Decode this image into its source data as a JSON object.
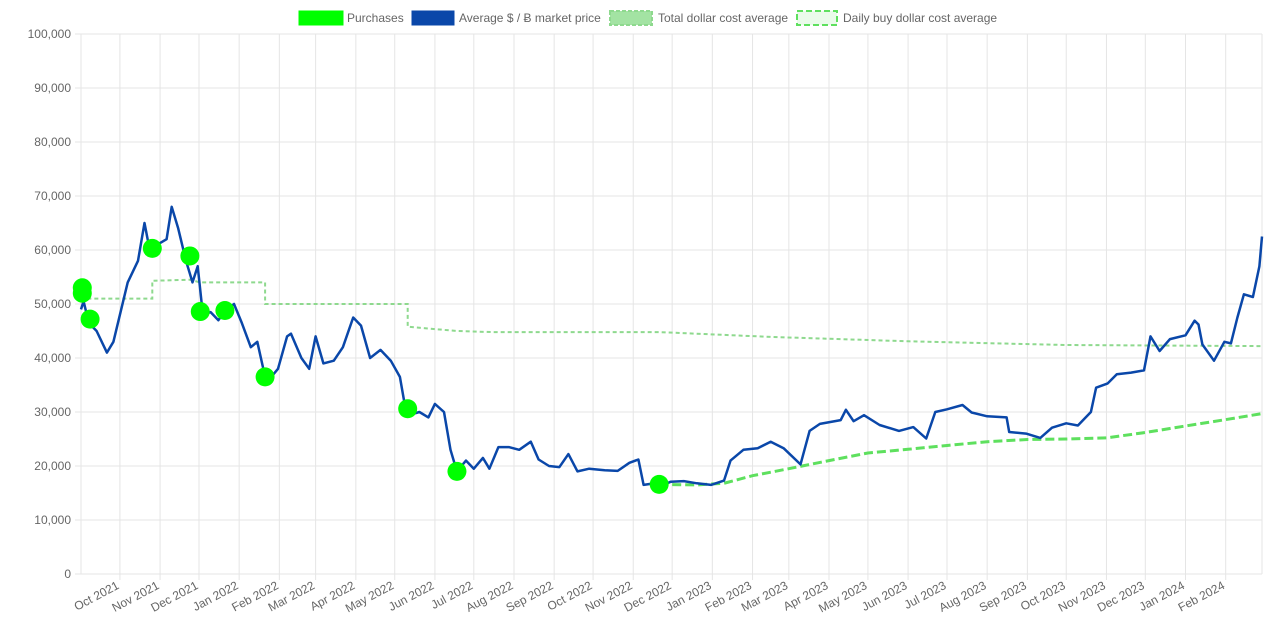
{
  "chart_data": {
    "type": "line",
    "title": "",
    "xlabel": "",
    "ylabel": "",
    "ylim": [
      0,
      100000
    ],
    "grid": true,
    "legend_position": "top",
    "y_ticks": [
      "0",
      "10,000",
      "20,000",
      "30,000",
      "40,000",
      "50,000",
      "60,000",
      "70,000",
      "80,000",
      "90,000",
      "100,000"
    ],
    "x_ticks": [
      "Oct 2021",
      "Nov 2021",
      "Dec 2021",
      "Jan 2022",
      "Feb 2022",
      "Mar 2022",
      "Apr 2022",
      "May 2022",
      "Jun 2022",
      "Jul 2022",
      "Aug 2022",
      "Sep 2022",
      "Oct 2022",
      "Nov 2022",
      "Dec 2022",
      "Jan 2023",
      "Feb 2023",
      "Mar 2023",
      "Apr 2023",
      "May 2023",
      "Jun 2023",
      "Jul 2023",
      "Aug 2023",
      "Sep 2023",
      "Oct 2023",
      "Nov 2023",
      "Dec 2023",
      "Jan 2024",
      "Feb 2024"
    ],
    "series": [
      {
        "name": "Purchases",
        "kind": "points",
        "color": "#00ff00",
        "points": [
          [
            "2021-09-02",
            52000
          ],
          [
            "2021-09-02",
            53000
          ],
          [
            "2021-09-08",
            47200
          ],
          [
            "2021-10-26",
            60300
          ],
          [
            "2021-11-24",
            58900
          ],
          [
            "2021-12-02",
            48600
          ],
          [
            "2021-12-21",
            48800
          ],
          [
            "2022-01-21",
            36500
          ],
          [
            "2022-05-11",
            30600
          ],
          [
            "2022-06-18",
            19000
          ],
          [
            "2022-11-21",
            16600
          ]
        ]
      },
      {
        "name": "Average $ / Ƀ market price",
        "kind": "line",
        "color": "#0a47a9",
        "points": [
          [
            "2021-09-01",
            49000
          ],
          [
            "2021-09-03",
            50500
          ],
          [
            "2021-09-07",
            46500
          ],
          [
            "2021-09-13",
            45000
          ],
          [
            "2021-09-21",
            41000
          ],
          [
            "2021-09-26",
            43000
          ],
          [
            "2021-10-01",
            48000
          ],
          [
            "2021-10-07",
            54000
          ],
          [
            "2021-10-15",
            58000
          ],
          [
            "2021-10-20",
            65000
          ],
          [
            "2021-10-24",
            60000
          ],
          [
            "2021-10-30",
            61000
          ],
          [
            "2021-11-06",
            62000
          ],
          [
            "2021-11-10",
            68000
          ],
          [
            "2021-11-15",
            64000
          ],
          [
            "2021-11-21",
            58000
          ],
          [
            "2021-11-26",
            54000
          ],
          [
            "2021-11-30",
            57000
          ],
          [
            "2021-12-04",
            48000
          ],
          [
            "2021-12-10",
            48500
          ],
          [
            "2021-12-16",
            47000
          ],
          [
            "2021-12-22",
            49000
          ],
          [
            "2021-12-28",
            50000
          ],
          [
            "2022-01-03",
            46500
          ],
          [
            "2022-01-10",
            42000
          ],
          [
            "2022-01-15",
            43000
          ],
          [
            "2022-01-21",
            36500
          ],
          [
            "2022-01-24",
            36000
          ],
          [
            "2022-01-31",
            38000
          ],
          [
            "2022-02-07",
            44000
          ],
          [
            "2022-02-10",
            44500
          ],
          [
            "2022-02-18",
            40000
          ],
          [
            "2022-02-24",
            38000
          ],
          [
            "2022-03-01",
            44000
          ],
          [
            "2022-03-07",
            39000
          ],
          [
            "2022-03-15",
            39500
          ],
          [
            "2022-03-22",
            42000
          ],
          [
            "2022-03-30",
            47500
          ],
          [
            "2022-04-05",
            46000
          ],
          [
            "2022-04-12",
            40000
          ],
          [
            "2022-04-20",
            41500
          ],
          [
            "2022-04-28",
            39500
          ],
          [
            "2022-05-05",
            36500
          ],
          [
            "2022-05-09",
            31000
          ],
          [
            "2022-05-13",
            29500
          ],
          [
            "2022-05-20",
            30000
          ],
          [
            "2022-05-27",
            29000
          ],
          [
            "2022-06-01",
            31500
          ],
          [
            "2022-06-08",
            30000
          ],
          [
            "2022-06-13",
            23000
          ],
          [
            "2022-06-18",
            19000
          ],
          [
            "2022-06-25",
            21000
          ],
          [
            "2022-07-01",
            19500
          ],
          [
            "2022-07-08",
            21500
          ],
          [
            "2022-07-13",
            19500
          ],
          [
            "2022-07-20",
            23500
          ],
          [
            "2022-07-28",
            23500
          ],
          [
            "2022-08-05",
            23000
          ],
          [
            "2022-08-14",
            24500
          ],
          [
            "2022-08-20",
            21200
          ],
          [
            "2022-08-28",
            20000
          ],
          [
            "2022-09-05",
            19800
          ],
          [
            "2022-09-12",
            22200
          ],
          [
            "2022-09-19",
            19000
          ],
          [
            "2022-09-28",
            19500
          ],
          [
            "2022-10-10",
            19200
          ],
          [
            "2022-10-20",
            19100
          ],
          [
            "2022-10-29",
            20600
          ],
          [
            "2022-11-05",
            21200
          ],
          [
            "2022-11-09",
            16500
          ],
          [
            "2022-11-15",
            16700
          ],
          [
            "2022-11-21",
            16200
          ],
          [
            "2022-11-30",
            17100
          ],
          [
            "2022-12-10",
            17200
          ],
          [
            "2022-12-20",
            16800
          ],
          [
            "2022-12-31",
            16500
          ],
          [
            "2023-01-10",
            17300
          ],
          [
            "2023-01-15",
            21000
          ],
          [
            "2023-01-25",
            23000
          ],
          [
            "2023-02-05",
            23300
          ],
          [
            "2023-02-15",
            24500
          ],
          [
            "2023-02-25",
            23300
          ],
          [
            "2023-03-10",
            20300
          ],
          [
            "2023-03-17",
            26500
          ],
          [
            "2023-03-25",
            27800
          ],
          [
            "2023-04-10",
            28500
          ],
          [
            "2023-04-14",
            30400
          ],
          [
            "2023-04-20",
            28300
          ],
          [
            "2023-04-28",
            29400
          ],
          [
            "2023-05-10",
            27600
          ],
          [
            "2023-05-25",
            26500
          ],
          [
            "2023-06-05",
            27200
          ],
          [
            "2023-06-15",
            25100
          ],
          [
            "2023-06-22",
            30000
          ],
          [
            "2023-07-01",
            30500
          ],
          [
            "2023-07-13",
            31300
          ],
          [
            "2023-07-20",
            29900
          ],
          [
            "2023-08-01",
            29200
          ],
          [
            "2023-08-16",
            29000
          ],
          [
            "2023-08-18",
            26300
          ],
          [
            "2023-08-31",
            26000
          ],
          [
            "2023-09-11",
            25200
          ],
          [
            "2023-09-20",
            27100
          ],
          [
            "2023-10-01",
            27900
          ],
          [
            "2023-10-10",
            27500
          ],
          [
            "2023-10-20",
            30000
          ],
          [
            "2023-10-24",
            34500
          ],
          [
            "2023-11-02",
            35300
          ],
          [
            "2023-11-09",
            37000
          ],
          [
            "2023-11-20",
            37300
          ],
          [
            "2023-11-30",
            37700
          ],
          [
            "2023-12-05",
            44000
          ],
          [
            "2023-12-12",
            41300
          ],
          [
            "2023-12-20",
            43500
          ],
          [
            "2024-01-01",
            44200
          ],
          [
            "2024-01-08",
            46900
          ],
          [
            "2024-01-11",
            46200
          ],
          [
            "2024-01-14",
            42500
          ],
          [
            "2024-01-23",
            39500
          ],
          [
            "2024-01-31",
            43000
          ],
          [
            "2024-02-05",
            42700
          ],
          [
            "2024-02-10",
            47500
          ],
          [
            "2024-02-15",
            51800
          ],
          [
            "2024-02-22",
            51300
          ],
          [
            "2024-02-27",
            57000
          ],
          [
            "2024-02-29",
            62500
          ]
        ]
      },
      {
        "name": "Total dollar cost average",
        "kind": "line",
        "color": "#8ed98e",
        "points": [
          [
            "2021-09-01",
            51500
          ],
          [
            "2021-09-05",
            51000
          ],
          [
            "2021-10-26",
            51000
          ],
          [
            "2021-10-26",
            54300
          ],
          [
            "2021-11-24",
            54500
          ],
          [
            "2021-12-02",
            54000
          ],
          [
            "2022-01-21",
            54000
          ],
          [
            "2022-01-21",
            50000
          ],
          [
            "2022-05-11",
            50000
          ],
          [
            "2022-05-11",
            45800
          ],
          [
            "2022-06-18",
            45000
          ],
          [
            "2022-07-15",
            44800
          ],
          [
            "2022-11-21",
            44800
          ],
          [
            "2023-02-15",
            43900
          ],
          [
            "2023-06-01",
            43100
          ],
          [
            "2023-10-01",
            42400
          ],
          [
            "2024-02-29",
            42200
          ]
        ]
      },
      {
        "name": "Daily buy dollar cost average",
        "kind": "line",
        "color": "#5ee05e",
        "points": [
          [
            "2022-11-21",
            16600
          ],
          [
            "2022-12-20",
            16500
          ],
          [
            "2023-01-10",
            16800
          ],
          [
            "2023-02-01",
            18200
          ],
          [
            "2023-03-01",
            19500
          ],
          [
            "2023-04-01",
            21000
          ],
          [
            "2023-05-01",
            22400
          ],
          [
            "2023-06-01",
            23100
          ],
          [
            "2023-07-01",
            23800
          ],
          [
            "2023-08-01",
            24500
          ],
          [
            "2023-09-01",
            24900
          ],
          [
            "2023-10-01",
            25000
          ],
          [
            "2023-11-01",
            25200
          ],
          [
            "2023-12-01",
            26200
          ],
          [
            "2024-01-01",
            27400
          ],
          [
            "2024-02-01",
            28600
          ],
          [
            "2024-02-29",
            29700
          ]
        ]
      }
    ]
  }
}
